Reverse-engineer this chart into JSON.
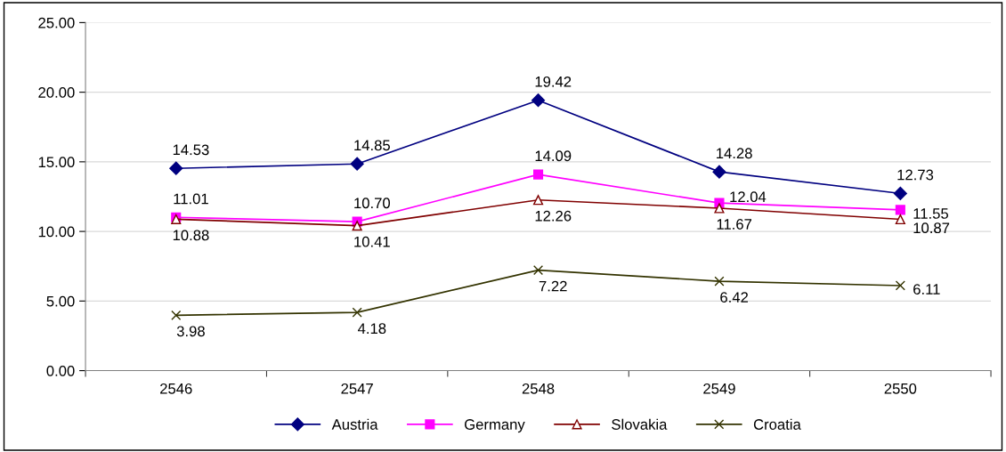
{
  "chart_data": {
    "type": "line",
    "categories": [
      "2546",
      "2547",
      "2548",
      "2549",
      "2550"
    ],
    "series": [
      {
        "name": "Austria",
        "color": "#000080",
        "marker": "diamond",
        "values": [
          14.53,
          14.85,
          19.42,
          14.28,
          12.73
        ],
        "value_labels": [
          "14.53",
          "14.85",
          "19.42",
          "14.28",
          "12.73"
        ]
      },
      {
        "name": "Germany",
        "color": "#ff00ff",
        "marker": "square",
        "values": [
          11.01,
          10.7,
          14.09,
          12.04,
          11.55
        ],
        "value_labels": [
          "11.01",
          "10.70",
          "14.09",
          "12.04",
          "11.55"
        ]
      },
      {
        "name": "Slovakia",
        "color": "#800000",
        "marker": "triangle",
        "values": [
          10.88,
          10.41,
          12.26,
          11.67,
          10.87
        ],
        "value_labels": [
          "10.88",
          "10.41",
          "12.26",
          "11.67",
          "10.87"
        ]
      },
      {
        "name": "Croatia",
        "color": "#333300",
        "marker": "cross",
        "values": [
          3.98,
          4.18,
          7.22,
          6.42,
          6.11
        ],
        "value_labels": [
          "3.98",
          "4.18",
          "7.22",
          "6.42",
          "6.11"
        ]
      }
    ],
    "ylim": [
      0,
      25
    ],
    "yticks": [
      {
        "value": 0,
        "label": "0.00"
      },
      {
        "value": 5,
        "label": "5.00"
      },
      {
        "value": 10,
        "label": "10.00"
      },
      {
        "value": 15,
        "label": "15.00"
      },
      {
        "value": 20,
        "label": "20.00"
      },
      {
        "value": 25,
        "label": "25.00"
      }
    ],
    "grid": "y",
    "legend": "bottom",
    "line_style": "solid"
  }
}
